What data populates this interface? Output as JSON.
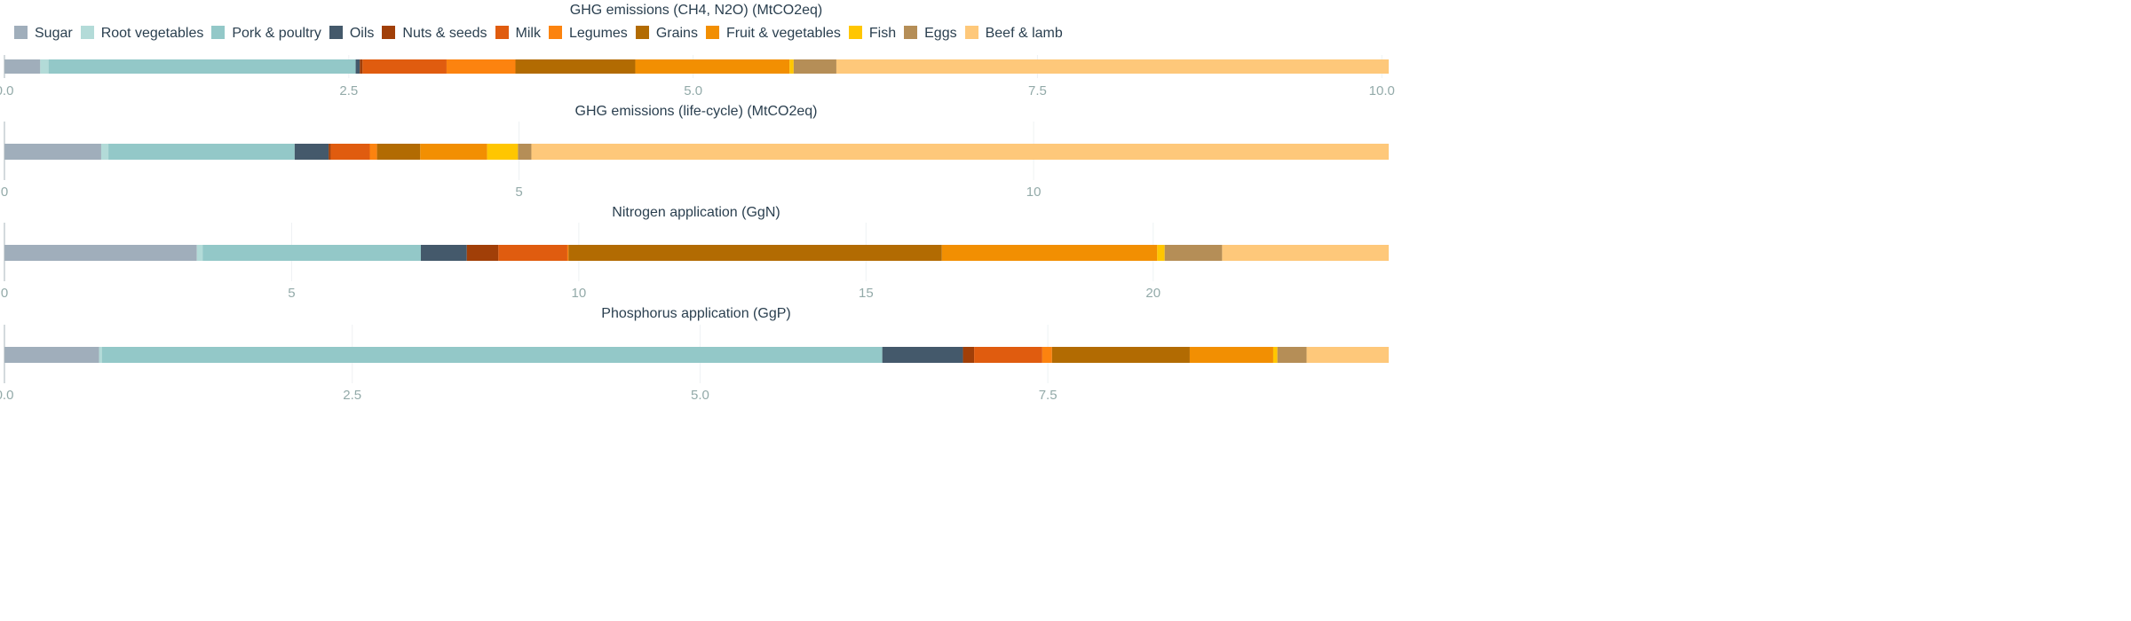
{
  "legend": [
    {
      "name": "Sugar",
      "color": "#a0aebb"
    },
    {
      "name": "Root vegetables",
      "color": "#b3dbd8"
    },
    {
      "name": "Pork & poultry",
      "color": "#93c8c8"
    },
    {
      "name": "Oils",
      "color": "#44596b"
    },
    {
      "name": "Nuts & seeds",
      "color": "#a13f08"
    },
    {
      "name": "Milk",
      "color": "#e05c0f"
    },
    {
      "name": "Legumes",
      "color": "#fc830f"
    },
    {
      "name": "Grains",
      "color": "#b26b02"
    },
    {
      "name": "Fruit & vegetables",
      "color": "#f28f02"
    },
    {
      "name": "Fish",
      "color": "#ffc601"
    },
    {
      "name": "Eggs",
      "color": "#b58e57"
    },
    {
      "name": "Beef & lamb",
      "color": "#fec87a"
    }
  ],
  "chart_data": [
    {
      "type": "bar",
      "orientation": "horizontal",
      "stacked": true,
      "title": "GHG emissions (CH4, N2O) (MtCO2eq)",
      "xlim": [
        0,
        10.05
      ],
      "ticks": [
        0,
        2.5,
        5,
        7.5,
        10
      ],
      "tick_labels": [
        "0.0",
        "2.5",
        "5.0",
        "7.5",
        "10.0"
      ],
      "series": [
        {
          "name": "Sugar",
          "value": 0.26
        },
        {
          "name": "Root vegetables",
          "value": 0.06
        },
        {
          "name": "Pork & poultry",
          "value": 2.23
        },
        {
          "name": "Oils",
          "value": 0.03
        },
        {
          "name": "Nuts & seeds",
          "value": 0.02
        },
        {
          "name": "Milk",
          "value": 0.61
        },
        {
          "name": "Legumes",
          "value": 0.5
        },
        {
          "name": "Grains",
          "value": 0.87
        },
        {
          "name": "Fruit & vegetables",
          "value": 1.12
        },
        {
          "name": "Fish",
          "value": 0.03
        },
        {
          "name": "Eggs",
          "value": 0.31
        },
        {
          "name": "Beef & lamb",
          "value": 4.01
        }
      ]
    },
    {
      "type": "bar",
      "orientation": "horizontal",
      "stacked": true,
      "title": "GHG emissions (life-cycle) (MtCO2eq)",
      "xlim": [
        0,
        13.45
      ],
      "ticks": [
        0,
        5,
        10
      ],
      "tick_labels": [
        "0",
        "5",
        "10"
      ],
      "series": [
        {
          "name": "Sugar",
          "value": 0.94
        },
        {
          "name": "Root vegetables",
          "value": 0.07
        },
        {
          "name": "Pork & poultry",
          "value": 1.81
        },
        {
          "name": "Oils",
          "value": 0.33
        },
        {
          "name": "Nuts & seeds",
          "value": 0.02
        },
        {
          "name": "Milk",
          "value": 0.38
        },
        {
          "name": "Legumes",
          "value": 0.07
        },
        {
          "name": "Grains",
          "value": 0.42
        },
        {
          "name": "Fruit & vegetables",
          "value": 0.65
        },
        {
          "name": "Fish",
          "value": 0.3
        },
        {
          "name": "Eggs",
          "value": 0.13
        },
        {
          "name": "Beef & lamb",
          "value": 8.33
        }
      ]
    },
    {
      "type": "bar",
      "orientation": "horizontal",
      "stacked": true,
      "title": "Nitrogen application (GgN)",
      "xlim": [
        0,
        24.1
      ],
      "ticks": [
        0,
        5,
        10,
        15,
        20
      ],
      "tick_labels": [
        "0",
        "5",
        "10",
        "15",
        "20"
      ],
      "series": [
        {
          "name": "Sugar",
          "value": 3.35
        },
        {
          "name": "Root vegetables",
          "value": 0.1
        },
        {
          "name": "Pork & poultry",
          "value": 3.8
        },
        {
          "name": "Oils",
          "value": 0.8
        },
        {
          "name": "Nuts & seeds",
          "value": 0.55
        },
        {
          "name": "Milk",
          "value": 1.2
        },
        {
          "name": "Legumes",
          "value": 0.02
        },
        {
          "name": "Grains",
          "value": 6.5
        },
        {
          "name": "Fruit & vegetables",
          "value": 3.75
        },
        {
          "name": "Fish",
          "value": 0.13
        },
        {
          "name": "Eggs",
          "value": 1.0
        },
        {
          "name": "Beef & lamb",
          "value": 2.9
        }
      ]
    },
    {
      "type": "bar",
      "orientation": "horizontal",
      "stacked": true,
      "title": "Phosphorus application (GgP)",
      "xlim": [
        0,
        9.95
      ],
      "ticks": [
        0,
        2.5,
        5,
        7.5
      ],
      "tick_labels": [
        "0.0",
        "2.5",
        "5.0",
        "7.5"
      ],
      "series": [
        {
          "name": "Sugar",
          "value": 0.68
        },
        {
          "name": "Root vegetables",
          "value": 0.02
        },
        {
          "name": "Pork & poultry",
          "value": 5.61
        },
        {
          "name": "Oils",
          "value": 0.58
        },
        {
          "name": "Nuts & seeds",
          "value": 0.08
        },
        {
          "name": "Milk",
          "value": 0.49
        },
        {
          "name": "Legumes",
          "value": 0.07
        },
        {
          "name": "Grains",
          "value": 0.99
        },
        {
          "name": "Fruit & vegetables",
          "value": 0.6
        },
        {
          "name": "Fish",
          "value": 0.03
        },
        {
          "name": "Eggs",
          "value": 0.21
        },
        {
          "name": "Beef & lamb",
          "value": 0.59
        }
      ]
    }
  ]
}
